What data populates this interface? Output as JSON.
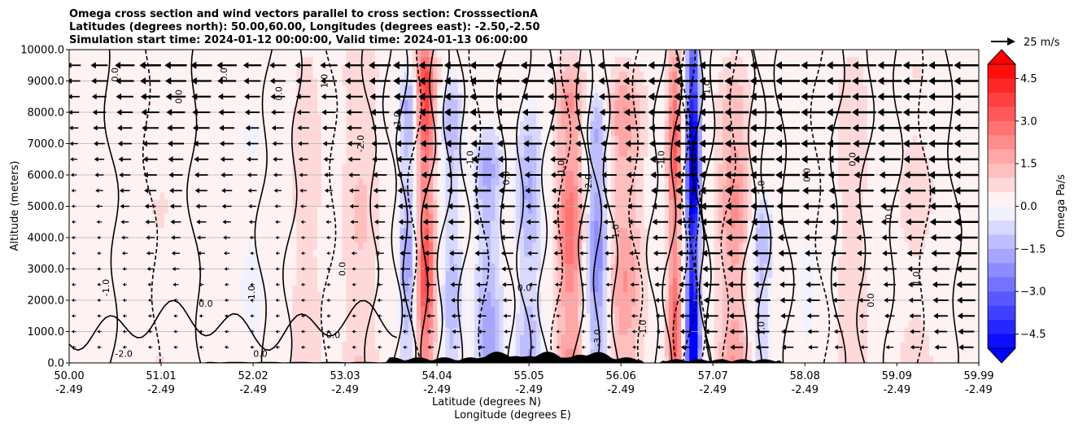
{
  "chart_data": {
    "type": "heatmap",
    "title_lines": [
      "Omega cross section and wind vectors parallel to cross section: CrosssectionA",
      "Latitudes (degrees north): 50.00,60.00, Longitudes (degrees east): -2.50,-2.50",
      "Simulation start time: 2024-01-12 00:00:00, Valid time: 2024-01-13 06:00:00"
    ],
    "xlabel_lines": [
      "Latitude (degrees N)",
      "Longitude (degrees E)"
    ],
    "ylabel": "Altitude (meters)",
    "x_ticks": [
      {
        "lat": "50.00",
        "lon": "-2.49"
      },
      {
        "lat": "51.01",
        "lon": "-2.49"
      },
      {
        "lat": "52.02",
        "lon": "-2.49"
      },
      {
        "lat": "53.03",
        "lon": "-2.49"
      },
      {
        "lat": "54.04",
        "lon": "-2.49"
      },
      {
        "lat": "55.05",
        "lon": "-2.49"
      },
      {
        "lat": "56.06",
        "lon": "-2.49"
      },
      {
        "lat": "57.07",
        "lon": "-2.49"
      },
      {
        "lat": "58.08",
        "lon": "-2.49"
      },
      {
        "lat": "59.09",
        "lon": "-2.49"
      },
      {
        "lat": "59.99",
        "lon": "-2.49"
      }
    ],
    "xlim": [
      50.0,
      59.99
    ],
    "y_ticks": [
      "0.0",
      "1000.0",
      "2000.0",
      "3000.0",
      "4000.0",
      "5000.0",
      "6000.0",
      "7000.0",
      "8000.0",
      "9000.0",
      "10000.0"
    ],
    "ylim": [
      0,
      10000
    ],
    "grid": "horizontal",
    "colorbar": {
      "label": "Omega Pa/s",
      "ticks": [
        "4.5",
        "3.0",
        "1.5",
        "0.0",
        "−1.5",
        "−3.0",
        "−4.5"
      ],
      "range": [
        -5.0,
        5.0
      ],
      "levels": 20,
      "colormap": "bwr",
      "extend": "both"
    },
    "quiver_key": "25 m/s",
    "contour_labels": [
      "0.0",
      "-1.0",
      "1.0",
      "-2.0",
      "2.0",
      "-3.0",
      "3.0",
      "-1.0",
      "0.0"
    ],
    "features": {
      "strong_updraft_bands_lat": [
        54.0,
        56.9
      ],
      "strong_descent_bands_lat": [
        53.9,
        55.6,
        57.4
      ],
      "wind_direction": "southward (pointing toward lower latitude), strongest above 4000 m north of 53.5"
    },
    "colors": {
      "positive": "#ff0000",
      "negative": "#0000ff",
      "neutral": "#ffffff"
    }
  }
}
